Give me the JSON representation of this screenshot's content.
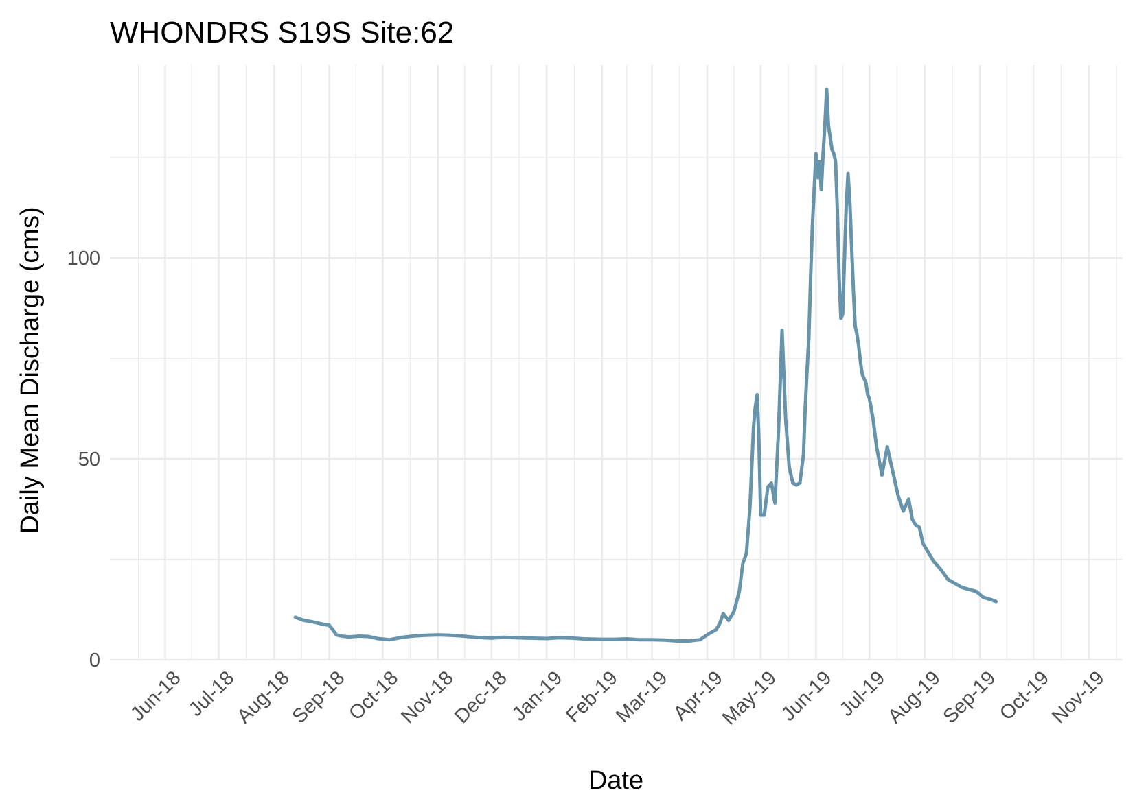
{
  "chart_data": {
    "type": "line",
    "title": "WHONDRS S19S Site:62",
    "xlabel": "Date",
    "ylabel": "Daily Mean Discharge (cms)",
    "x_scale": "date",
    "xlim": [
      "2018-05-01",
      "2019-11-20"
    ],
    "ylim": [
      0,
      148
    ],
    "y_ticks": [
      0,
      50,
      100
    ],
    "y_minor_ticks": [
      25,
      75,
      125
    ],
    "x_ticks": [
      {
        "date": "2018-06-01",
        "label": "Jun-18"
      },
      {
        "date": "2018-07-01",
        "label": "Jul-18"
      },
      {
        "date": "2018-08-01",
        "label": "Aug-18"
      },
      {
        "date": "2018-09-01",
        "label": "Sep-18"
      },
      {
        "date": "2018-10-01",
        "label": "Oct-18"
      },
      {
        "date": "2018-11-01",
        "label": "Nov-18"
      },
      {
        "date": "2018-12-01",
        "label": "Dec-18"
      },
      {
        "date": "2019-01-01",
        "label": "Jan-19"
      },
      {
        "date": "2019-02-01",
        "label": "Feb-19"
      },
      {
        "date": "2019-03-01",
        "label": "Mar-19"
      },
      {
        "date": "2019-04-01",
        "label": "Apr-19"
      },
      {
        "date": "2019-05-01",
        "label": "May-19"
      },
      {
        "date": "2019-06-01",
        "label": "Jun-19"
      },
      {
        "date": "2019-07-01",
        "label": "Jul-19"
      },
      {
        "date": "2019-08-01",
        "label": "Aug-19"
      },
      {
        "date": "2019-09-01",
        "label": "Sep-19"
      },
      {
        "date": "2019-10-01",
        "label": "Oct-19"
      },
      {
        "date": "2019-11-01",
        "label": "Nov-19"
      }
    ],
    "grid": true,
    "line_color": "#6794ab",
    "series": [
      {
        "x": [
          "2018-08-13",
          "2018-08-16",
          "2018-08-18",
          "2018-08-22",
          "2018-08-25",
          "2018-08-28",
          "2018-09-01",
          "2018-09-03",
          "2018-09-05",
          "2018-09-08",
          "2018-09-12",
          "2018-09-18",
          "2018-09-23",
          "2018-09-28",
          "2018-10-05",
          "2018-10-12",
          "2018-10-18",
          "2018-10-25",
          "2018-11-01",
          "2018-11-08",
          "2018-11-15",
          "2018-11-22",
          "2018-12-01",
          "2018-12-08",
          "2018-12-15",
          "2018-12-22",
          "2019-01-01",
          "2019-01-08",
          "2019-01-15",
          "2019-01-22",
          "2019-02-01",
          "2019-02-08",
          "2019-02-15",
          "2019-02-22",
          "2019-03-01",
          "2019-03-08",
          "2019-03-15",
          "2019-03-22",
          "2019-03-28",
          "2019-04-02",
          "2019-04-06",
          "2019-04-08",
          "2019-04-10",
          "2019-04-13",
          "2019-04-16",
          "2019-04-19",
          "2019-04-21",
          "2019-04-23",
          "2019-04-25",
          "2019-04-27",
          "2019-04-28",
          "2019-04-29",
          "2019-04-30",
          "2019-05-01",
          "2019-05-03",
          "2019-05-05",
          "2019-05-07",
          "2019-05-09",
          "2019-05-11",
          "2019-05-13",
          "2019-05-15",
          "2019-05-17",
          "2019-05-19",
          "2019-05-21",
          "2019-05-23",
          "2019-05-25",
          "2019-05-26",
          "2019-05-27",
          "2019-05-28",
          "2019-05-29",
          "2019-05-30",
          "2019-05-31",
          "2019-06-01",
          "2019-06-02",
          "2019-06-03",
          "2019-06-04",
          "2019-06-05",
          "2019-06-06",
          "2019-06-07",
          "2019-06-08",
          "2019-06-09",
          "2019-06-10",
          "2019-06-11",
          "2019-06-12",
          "2019-06-13",
          "2019-06-14",
          "2019-06-15",
          "2019-06-16",
          "2019-06-17",
          "2019-06-18",
          "2019-06-19",
          "2019-06-20",
          "2019-06-21",
          "2019-06-22",
          "2019-06-23",
          "2019-06-24",
          "2019-06-25",
          "2019-06-26",
          "2019-06-27",
          "2019-06-28",
          "2019-06-29",
          "2019-06-30",
          "2019-07-01",
          "2019-07-03",
          "2019-07-05",
          "2019-07-08",
          "2019-07-11",
          "2019-07-14",
          "2019-07-17",
          "2019-07-20",
          "2019-07-23",
          "2019-07-25",
          "2019-07-27",
          "2019-07-29",
          "2019-07-31",
          "2019-08-02",
          "2019-08-04",
          "2019-08-06",
          "2019-08-08",
          "2019-08-10",
          "2019-08-14",
          "2019-08-18",
          "2019-08-22",
          "2019-08-26",
          "2019-08-30",
          "2019-09-03",
          "2019-09-07",
          "2019-09-10"
        ],
        "y": [
          10.6,
          10.1,
          9.8,
          9.5,
          9.2,
          8.9,
          8.6,
          7.5,
          6.2,
          5.9,
          5.7,
          5.9,
          5.8,
          5.3,
          5.0,
          5.6,
          5.9,
          6.1,
          6.2,
          6.1,
          5.9,
          5.6,
          5.4,
          5.6,
          5.5,
          5.4,
          5.3,
          5.5,
          5.4,
          5.2,
          5.1,
          5.1,
          5.2,
          5.0,
          5.0,
          4.9,
          4.7,
          4.7,
          5.0,
          6.5,
          7.5,
          9.0,
          11.5,
          9.8,
          12.0,
          17.0,
          24.0,
          26.5,
          38.0,
          58.0,
          63.0,
          66.0,
          55.0,
          36.0,
          36.0,
          43.0,
          44.0,
          39.0,
          57.0,
          82.0,
          60.0,
          48.0,
          44.0,
          43.5,
          44.0,
          51.0,
          63.0,
          72.0,
          80.0,
          95.0,
          108.0,
          117.0,
          126.0,
          120.0,
          124.0,
          117.0,
          126.0,
          133.0,
          142.0,
          133.0,
          130.0,
          127.0,
          126.0,
          124.0,
          112.0,
          95.0,
          85.0,
          86.0,
          100.0,
          113.0,
          121.0,
          114.0,
          103.0,
          92.0,
          83.0,
          81.0,
          78.0,
          74.0,
          71.0,
          70.0,
          69.0,
          66.0,
          65.0,
          60.0,
          53.0,
          46.0,
          53.0,
          47.0,
          41.0,
          37.0,
          40.0,
          35.0,
          33.5,
          33.0,
          29.0,
          27.5,
          26.0,
          24.5,
          23.5,
          22.5,
          20.0,
          19.0,
          18.0,
          17.5,
          17.0,
          15.5,
          15.0,
          14.5
        ]
      }
    ]
  }
}
